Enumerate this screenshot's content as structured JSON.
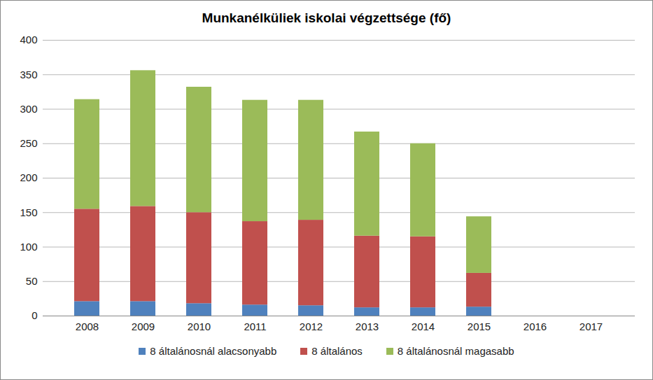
{
  "chart_data": {
    "type": "bar",
    "stacked": true,
    "title": "Munkanélküliek iskolai végzettsége (fő)",
    "categories": [
      "2008",
      "2009",
      "2010",
      "2011",
      "2012",
      "2013",
      "2014",
      "2015",
      "2016",
      "2017"
    ],
    "series": [
      {
        "name": "8 általánosnál alacsonyabb",
        "color": "#4f81bd",
        "values": [
          21,
          21,
          18,
          16,
          15,
          12,
          12,
          13,
          null,
          null
        ]
      },
      {
        "name": "8 általános",
        "color": "#c0504d",
        "values": [
          134,
          138,
          132,
          121,
          124,
          104,
          103,
          49,
          null,
          null
        ]
      },
      {
        "name": "8 általánosnál magasabb",
        "color": "#9bbb59",
        "values": [
          159,
          197,
          182,
          176,
          174,
          151,
          135,
          82,
          null,
          null
        ]
      }
    ],
    "ylim": [
      0,
      400
    ],
    "yticks": [
      0,
      50,
      100,
      150,
      200,
      250,
      300,
      350,
      400
    ],
    "grid": true,
    "legend": "bottom"
  }
}
